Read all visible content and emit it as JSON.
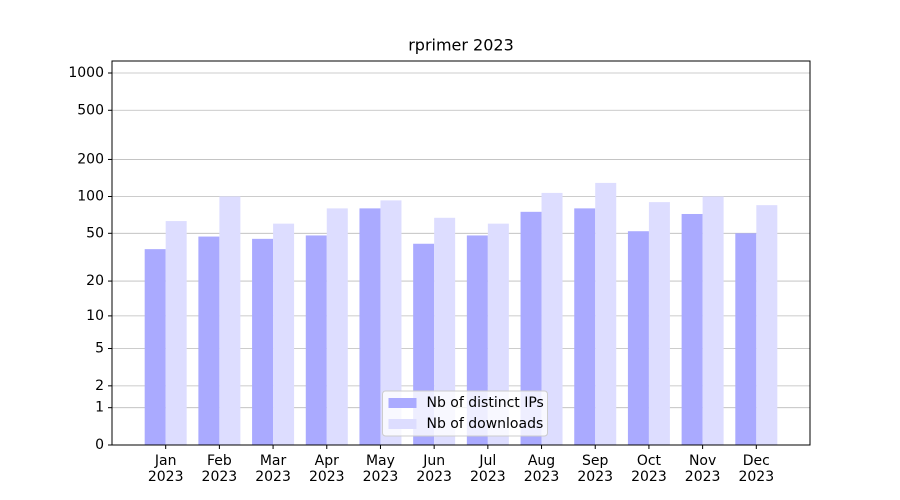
{
  "chart_data": {
    "type": "bar",
    "title": "rprimer 2023",
    "categories": [
      "Jan\n2023",
      "Feb\n2023",
      "Mar\n2023",
      "Apr\n2023",
      "May\n2023",
      "Jun\n2023",
      "Jul\n2023",
      "Aug\n2023",
      "Sep\n2023",
      "Oct\n2023",
      "Nov\n2023",
      "Dec\n2023"
    ],
    "series": [
      {
        "name": "Nb of distinct IPs",
        "color": "#aaaaff",
        "values": [
          37,
          47,
          45,
          48,
          80,
          41,
          48,
          75,
          80,
          52,
          72,
          50
        ]
      },
      {
        "name": "Nb of downloads",
        "color": "#ddddff",
        "values": [
          63,
          100,
          60,
          80,
          93,
          67,
          60,
          107,
          129,
          90,
          100,
          85
        ]
      }
    ],
    "yscale": "log10(1+y)",
    "ylim": [
      0,
      1250
    ],
    "yticks": [
      0,
      1,
      2,
      5,
      10,
      20,
      50,
      100,
      200,
      500,
      1000
    ],
    "grid": true,
    "legend": "lower center"
  }
}
